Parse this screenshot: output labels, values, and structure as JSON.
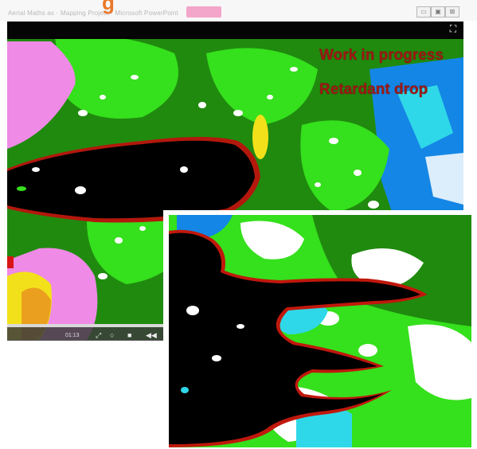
{
  "browser": {
    "tabs_text": "Aerial Maths as · Mapping Project · Microsoft PowerPoint",
    "title_fragment": "g",
    "window_buttons": [
      "▭",
      "▣",
      "⊠"
    ]
  },
  "video": {
    "labels": {
      "work_in_progress": "Work in progress",
      "retardant_drop": "Retardant drop"
    },
    "controls": {
      "time": "01:13",
      "buttons": [
        "⤢",
        "○",
        "■",
        "◀◀"
      ],
      "progress": 0.0
    },
    "icons": {
      "fullscreen": "expand-icon"
    }
  },
  "colors": {
    "dark_green": "#208a0f",
    "bright_green": "#35e01c",
    "black_burn": "#000000",
    "blue_water": "#1486e6",
    "cyan": "#2fd8e8",
    "pink": "#ef8ae6",
    "yellow": "#f2e11a",
    "orange": "#eaa01e",
    "red_label": "#9b1a14",
    "orange_title": "#e9782a"
  }
}
